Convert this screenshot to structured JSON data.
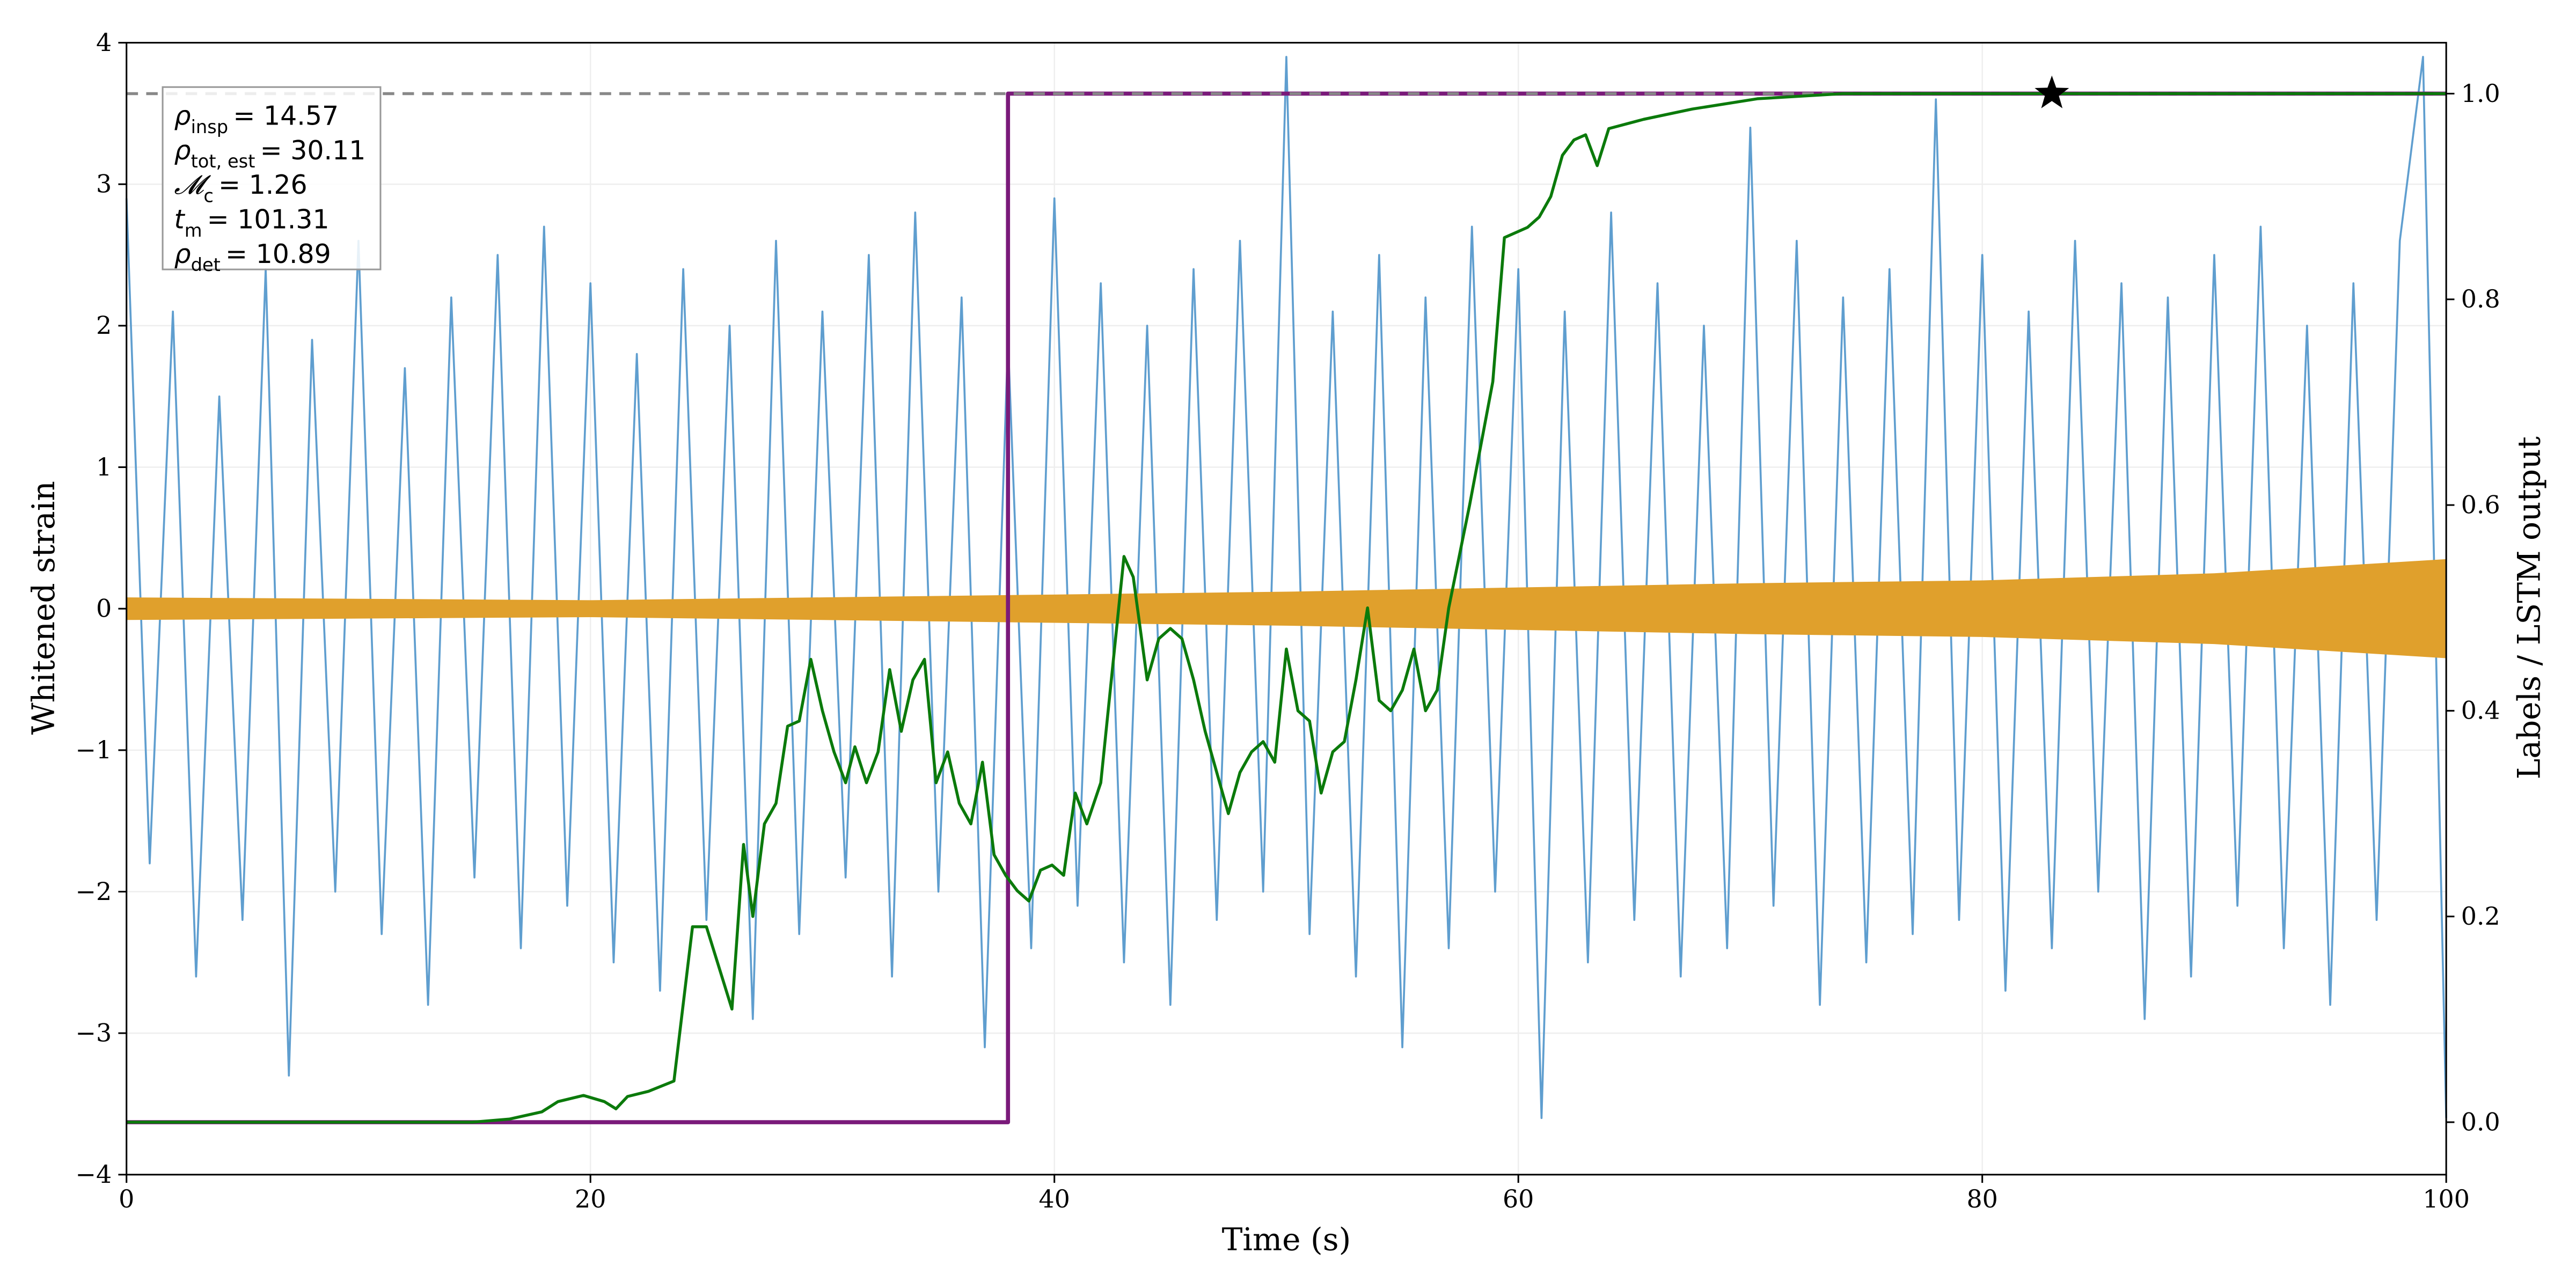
{
  "chart_data": {
    "type": "line",
    "xlabel": "Time (s)",
    "ylabel": "Whitened strain",
    "y2label": "Labels / LSTM output",
    "xlim": [
      0,
      100
    ],
    "xticks": [
      0,
      20,
      40,
      60,
      80,
      100
    ],
    "ylim": [
      -4,
      4
    ],
    "yticks": [
      {
        "value": -4,
        "label": "−4"
      },
      {
        "value": -3,
        "label": "−3"
      },
      {
        "value": -2,
        "label": "−2"
      },
      {
        "value": -1,
        "label": "−1"
      },
      0,
      1,
      2,
      3,
      4
    ],
    "y2lim": [
      -0.051,
      1.0495
    ],
    "y2ticks": [
      {
        "value": 0,
        "label": "0.0"
      },
      0.2,
      0.4,
      0.6,
      0.8,
      {
        "value": 1,
        "label": "1.0"
      }
    ],
    "grid": true,
    "series": [
      {
        "type": "line",
        "color": "#5f9ecf",
        "width": 1.2,
        "x": [
          0,
          1,
          2,
          3,
          4,
          5,
          6,
          7,
          8,
          9,
          10,
          11,
          12,
          13,
          14,
          15,
          16,
          17,
          18,
          19,
          20,
          21,
          22,
          23,
          24,
          25,
          26,
          27,
          28,
          29,
          30,
          31,
          32,
          33,
          34,
          35,
          36,
          37,
          38,
          39,
          40,
          41,
          42,
          43,
          44,
          45,
          46,
          47,
          48,
          49,
          50,
          51,
          52,
          53,
          54,
          55,
          56,
          57,
          58,
          59,
          60,
          61,
          62,
          63,
          64,
          65,
          66,
          67,
          68,
          69,
          70,
          71,
          72,
          73,
          74,
          75,
          76,
          77,
          78,
          79,
          80,
          81,
          82,
          83,
          84,
          85,
          86,
          87,
          88,
          89,
          90,
          91,
          92,
          93,
          94,
          95,
          96,
          97,
          98,
          99,
          100
        ],
        "values": [
          2.9,
          -1.8,
          2.1,
          -2.6,
          1.5,
          -2.2,
          2.4,
          -3.3,
          1.9,
          -2.0,
          2.6,
          -2.3,
          1.7,
          -2.8,
          2.2,
          -1.9,
          2.5,
          -2.4,
          2.7,
          -2.1,
          2.3,
          -2.5,
          1.8,
          -2.7,
          2.4,
          -2.2,
          2.0,
          -2.9,
          2.6,
          -2.3,
          2.1,
          -1.9,
          2.5,
          -2.6,
          2.8,
          -2.0,
          2.2,
          -3.1,
          1.9,
          -2.4,
          2.9,
          -2.1,
          2.3,
          -2.5,
          2.0,
          -2.8,
          2.4,
          -2.2,
          2.6,
          -2.0,
          3.9,
          -2.3,
          2.1,
          -2.6,
          2.5,
          -3.1,
          2.2,
          -2.4,
          2.7,
          -2.0,
          2.4,
          -3.6,
          2.1,
          -2.5,
          2.8,
          -2.2,
          2.3,
          -2.6,
          2.0,
          -2.4,
          3.4,
          -2.1,
          2.6,
          -2.8,
          2.2,
          -2.5,
          2.4,
          -2.3,
          3.6,
          -2.2,
          2.5,
          -2.7,
          2.1,
          -2.4,
          2.6,
          -2.0,
          2.3,
          -2.9,
          2.2,
          -2.6,
          2.5,
          -2.1,
          2.7,
          -2.4,
          2.0,
          -2.8,
          2.3,
          -2.2,
          2.6,
          3.9,
          -3.6
        ]
      },
      {
        "type": "band",
        "color": "#e0a02c",
        "x": [
          0,
          10,
          20,
          30,
          40,
          50,
          60,
          70,
          80,
          90,
          100
        ],
        "upper": [
          0.08,
          0.07,
          0.06,
          0.08,
          0.1,
          0.12,
          0.15,
          0.18,
          0.2,
          0.25,
          0.35
        ],
        "lower": [
          -0.08,
          -0.07,
          -0.06,
          -0.08,
          -0.1,
          -0.12,
          -0.15,
          -0.18,
          -0.2,
          -0.25,
          -0.35
        ]
      },
      {
        "type": "line",
        "axis": "y2",
        "color": "#7a1a7a",
        "width": 2.5,
        "x": [
          0,
          38,
          38,
          100
        ],
        "values": [
          0,
          0,
          1,
          1
        ]
      },
      {
        "type": "line",
        "axis": "y2",
        "color": "#888888",
        "width": 1.8,
        "dash": true,
        "x": [
          0,
          100
        ],
        "values": [
          1,
          1
        ]
      },
      {
        "type": "line",
        "axis": "y2",
        "color": "#0b7a0b",
        "width": 1.8,
        "x": [
          0,
          14.9,
          16.5,
          17.9,
          18.6,
          19.7,
          20.6,
          21.1,
          21.6,
          22.5,
          23.6,
          24.4,
          25.0,
          26.1,
          26.6,
          27.0,
          27.5,
          28.0,
          28.5,
          29.0,
          29.5,
          30.0,
          30.5,
          31.0,
          31.4,
          31.9,
          32.4,
          32.9,
          33.4,
          33.9,
          34.4,
          34.9,
          35.4,
          35.9,
          36.4,
          36.9,
          37.4,
          37.9,
          38.4,
          38.9,
          39.4,
          39.9,
          40.4,
          40.9,
          41.4,
          42.0,
          42.5,
          43.0,
          43.4,
          44.0,
          44.5,
          45.0,
          45.5,
          46.0,
          46.5,
          47.0,
          47.5,
          48.0,
          48.5,
          49.0,
          49.5,
          50.0,
          50.5,
          51.0,
          51.5,
          52.0,
          52.5,
          53.0,
          53.5,
          54.0,
          54.5,
          55.0,
          55.5,
          56.0,
          56.5,
          57.0,
          57.9,
          58.9,
          59.4,
          60.4,
          60.9,
          61.4,
          61.9,
          62.4,
          62.9,
          63.4,
          63.9,
          65.4,
          67.5,
          70.3,
          74.0,
          100
        ],
        "values": [
          0,
          0,
          0.003,
          0.01,
          0.02,
          0.026,
          0.02,
          0.013,
          0.025,
          0.03,
          0.04,
          0.19,
          0.19,
          0.11,
          0.27,
          0.2,
          0.29,
          0.31,
          0.385,
          0.39,
          0.45,
          0.4,
          0.36,
          0.33,
          0.365,
          0.33,
          0.36,
          0.44,
          0.38,
          0.43,
          0.45,
          0.33,
          0.36,
          0.31,
          0.29,
          0.35,
          0.26,
          0.24,
          0.225,
          0.215,
          0.245,
          0.25,
          0.24,
          0.32,
          0.29,
          0.33,
          0.44,
          0.55,
          0.53,
          0.43,
          0.47,
          0.48,
          0.47,
          0.43,
          0.38,
          0.34,
          0.3,
          0.34,
          0.36,
          0.37,
          0.35,
          0.46,
          0.4,
          0.39,
          0.32,
          0.36,
          0.37,
          0.43,
          0.5,
          0.41,
          0.4,
          0.42,
          0.46,
          0.4,
          0.42,
          0.5,
          0.6,
          0.72,
          0.86,
          0.87,
          0.88,
          0.9,
          0.94,
          0.955,
          0.96,
          0.93,
          0.966,
          0.975,
          0.985,
          0.995,
          1.0,
          1.0
        ]
      },
      {
        "type": "star",
        "axis": "y2",
        "color": "#000000",
        "x": [
          83
        ],
        "values": [
          1
        ]
      }
    ],
    "annotations": [
      {
        "symbol": "ρ",
        "subscript": "insp",
        "text": "= 14.57"
      },
      {
        "symbol": "ρ",
        "subscript": "tot, est",
        "text": "= 30.11"
      },
      {
        "symbol": "𝓜",
        "subscript": "c",
        "text": "= 1.26"
      },
      {
        "symbol": "t",
        "subscript": "m",
        "text": "= 101.31"
      },
      {
        "symbol": "ρ",
        "subscript": "det",
        "text": "= 10.89"
      }
    ]
  }
}
